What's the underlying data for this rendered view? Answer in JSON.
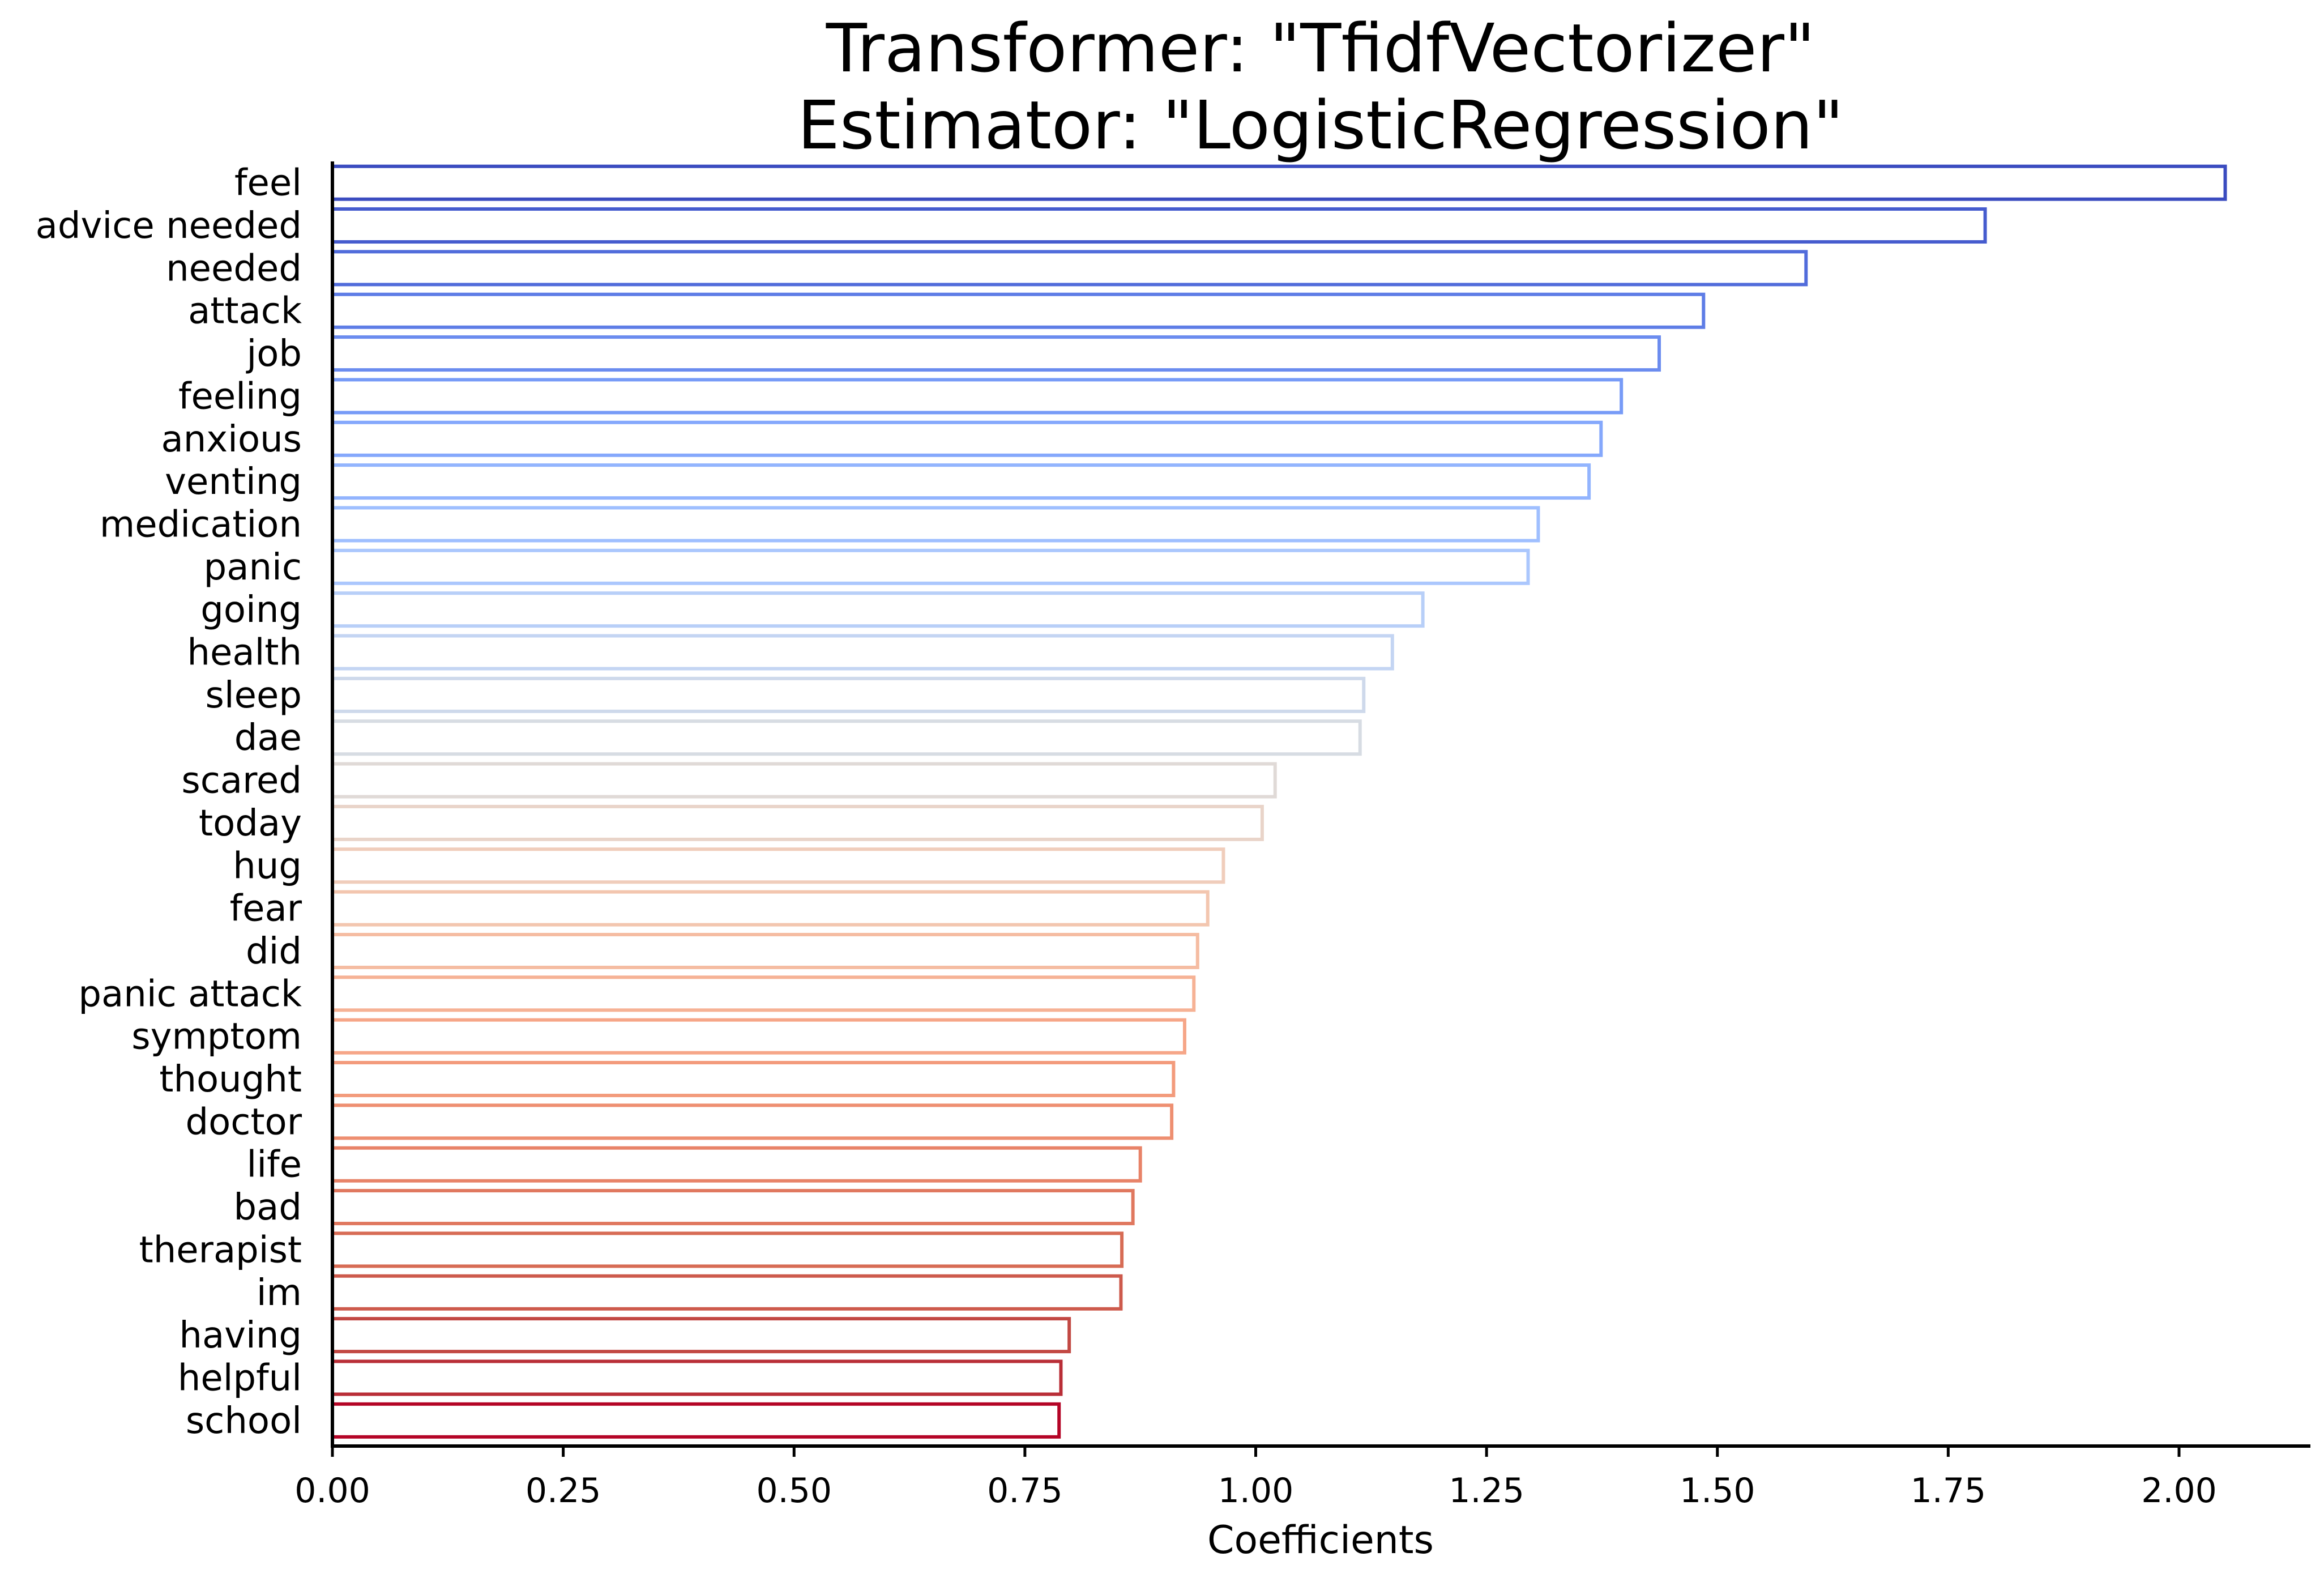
{
  "chart_data": {
    "type": "bar",
    "orientation": "horizontal",
    "title": [
      "Transformer: \"TfidfVectorizer\"",
      "Estimator: \"LogisticRegression\""
    ],
    "xlabel": "Coefficients",
    "ylabel": "",
    "xlim": [
      0,
      2.15
    ],
    "xticks": [
      "0.00",
      "0.25",
      "0.50",
      "0.75",
      "1.00",
      "1.25",
      "1.50",
      "1.75",
      "2.00"
    ],
    "grid": false,
    "legend": "none",
    "colormap": "coolwarm",
    "categories": [
      "feel",
      "advice needed",
      "needed",
      "attack",
      "job",
      "feeling",
      "anxious",
      "venting",
      "medication",
      "panic",
      "going",
      "health",
      "sleep",
      "dae",
      "scared",
      "today",
      "hug",
      "fear",
      "did",
      "panic attack",
      "symptom",
      "thought",
      "doctor",
      "life",
      "bad",
      "therapist",
      "im",
      "having",
      "helpful",
      "school"
    ],
    "values": [
      2.05,
      1.79,
      1.596,
      1.485,
      1.437,
      1.396,
      1.374,
      1.361,
      1.306,
      1.295,
      1.181,
      1.148,
      1.117,
      1.113,
      1.021,
      1.007,
      0.965,
      0.948,
      0.937,
      0.933,
      0.923,
      0.911,
      0.909,
      0.875,
      0.867,
      0.855,
      0.854,
      0.798,
      0.789,
      0.787
    ],
    "colors": [
      "#3b4cc0",
      "#4961d2",
      "#5977e3",
      "#6a8bef",
      "#7b9ff9",
      "#8db0fe",
      "#9ebeff",
      "#aec9fc",
      "#bfd3f6",
      "#cdd9ec",
      "#d9dce1",
      "#e5d8d1",
      "#efcebd",
      "#f4c5ad",
      "#f6b89c",
      "#f7a98b",
      "#f39a7b",
      "#ec8a6d",
      "#e27b62",
      "#d76b55",
      "#c95449",
      "#bb3b3d",
      "#b40426"
    ]
  }
}
